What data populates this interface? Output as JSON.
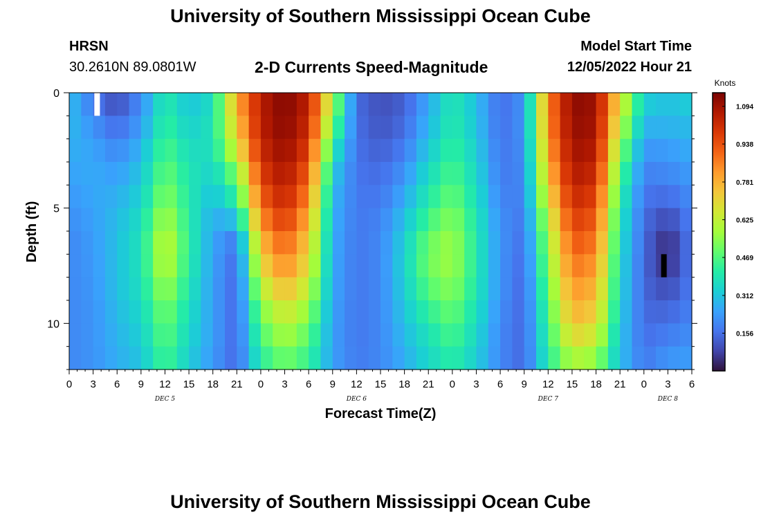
{
  "header": {
    "title": "University of Southern Mississippi Ocean Cube",
    "station": "HRSN",
    "coords": "30.2610N  89.0801W",
    "subtitle": "2-D Currents Speed-Magnitude",
    "model_label": "Model Start Time",
    "model_time": "12/05/2022 Hour 21"
  },
  "footer": {
    "title": "University of Southern Mississippi Ocean Cube"
  },
  "colors": {
    "scale": [
      "#30123b",
      "#4145ab",
      "#4675ed",
      "#39a2fc",
      "#1bcfd4",
      "#24eca6",
      "#61fc6c",
      "#a4fc3b",
      "#d1e834",
      "#f3c63a",
      "#fe9b2d",
      "#f36315",
      "#d93806",
      "#b11901",
      "#7a0403"
    ]
  },
  "chart_data": {
    "type": "heatmap",
    "title": "2-D Currents Speed-Magnitude",
    "xlabel": "Forecast Time(Z)",
    "ylabel": "Depth (ft)",
    "colorbar_label": "Knots",
    "colorbar_ticks": [
      "1.094",
      "0.938",
      "0.781",
      "0.625",
      "0.469",
      "0.312",
      "0.156"
    ],
    "colorbar_tick_values": [
      1.094,
      0.938,
      0.781,
      0.625,
      0.469,
      0.312,
      0.156
    ],
    "vmin": 0.0,
    "vmax": 1.15,
    "x_hours_range": [
      0,
      78
    ],
    "x_tick_labels": [
      "0",
      "3",
      "6",
      "9",
      "12",
      "15",
      "18",
      "21",
      "0",
      "3",
      "6",
      "9",
      "12",
      "15",
      "18",
      "21",
      "0",
      "3",
      "6",
      "9",
      "12",
      "15",
      "18",
      "21",
      "0",
      "3",
      "6"
    ],
    "day_labels": [
      {
        "label": "DEC 5",
        "hour": 12
      },
      {
        "label": "DEC 6",
        "hour": 36
      },
      {
        "label": "DEC 7",
        "hour": 60
      },
      {
        "label": "DEC 8",
        "hour": 75
      }
    ],
    "y_range": [
      0,
      12
    ],
    "y_tick_labels": [
      "0",
      "5",
      "10"
    ],
    "y_tick_values": [
      0,
      5,
      10
    ],
    "depth_levels_ft": [
      0,
      1,
      2,
      3,
      4,
      5,
      6,
      7,
      8,
      9,
      10,
      11,
      12
    ],
    "hours": [
      0,
      3,
      6,
      9,
      12,
      15,
      18,
      21,
      24,
      27,
      30,
      33,
      36,
      39,
      42,
      45,
      48,
      51,
      54,
      57,
      60,
      63,
      66,
      69,
      72,
      75,
      78
    ],
    "speed_knots": [
      [
        0.3,
        0.15,
        0.08,
        0.2,
        0.4,
        0.3,
        0.35,
        0.8,
        1.05,
        1.14,
        1.05,
        0.6,
        0.15,
        0.1,
        0.12,
        0.25,
        0.4,
        0.3,
        0.15,
        0.22,
        0.85,
        1.12,
        1.1,
        0.7,
        0.35,
        0.3,
        0.35
      ],
      [
        0.3,
        0.2,
        0.12,
        0.22,
        0.42,
        0.32,
        0.38,
        0.76,
        1.06,
        1.14,
        1.04,
        0.55,
        0.15,
        0.1,
        0.14,
        0.27,
        0.4,
        0.3,
        0.15,
        0.22,
        0.85,
        1.12,
        1.1,
        0.65,
        0.3,
        0.3,
        0.3
      ],
      [
        0.28,
        0.24,
        0.18,
        0.26,
        0.45,
        0.35,
        0.38,
        0.7,
        1.04,
        1.12,
        1.0,
        0.45,
        0.16,
        0.12,
        0.16,
        0.3,
        0.42,
        0.32,
        0.16,
        0.22,
        0.82,
        1.1,
        1.08,
        0.58,
        0.25,
        0.25,
        0.28
      ],
      [
        0.26,
        0.26,
        0.22,
        0.3,
        0.48,
        0.38,
        0.36,
        0.6,
        1.0,
        1.1,
        0.95,
        0.35,
        0.16,
        0.14,
        0.2,
        0.34,
        0.45,
        0.34,
        0.17,
        0.2,
        0.78,
        1.08,
        1.05,
        0.5,
        0.2,
        0.22,
        0.25
      ],
      [
        0.24,
        0.26,
        0.26,
        0.32,
        0.52,
        0.4,
        0.32,
        0.45,
        0.95,
        1.06,
        0.88,
        0.3,
        0.17,
        0.16,
        0.24,
        0.38,
        0.48,
        0.36,
        0.18,
        0.2,
        0.72,
        1.05,
        1.0,
        0.45,
        0.18,
        0.18,
        0.22
      ],
      [
        0.22,
        0.25,
        0.28,
        0.35,
        0.56,
        0.4,
        0.28,
        0.4,
        0.88,
        1.02,
        0.82,
        0.28,
        0.17,
        0.18,
        0.28,
        0.42,
        0.52,
        0.38,
        0.2,
        0.18,
        0.65,
        1.0,
        0.95,
        0.4,
        0.15,
        0.12,
        0.2
      ],
      [
        0.2,
        0.24,
        0.3,
        0.38,
        0.62,
        0.42,
        0.25,
        0.2,
        0.8,
        0.95,
        0.75,
        0.27,
        0.17,
        0.2,
        0.32,
        0.48,
        0.56,
        0.4,
        0.22,
        0.16,
        0.58,
        0.95,
        0.9,
        0.38,
        0.15,
        0.06,
        0.18
      ],
      [
        0.2,
        0.23,
        0.3,
        0.38,
        0.64,
        0.42,
        0.25,
        0.15,
        0.72,
        0.88,
        0.7,
        0.26,
        0.17,
        0.2,
        0.34,
        0.52,
        0.58,
        0.4,
        0.22,
        0.15,
        0.55,
        0.9,
        0.85,
        0.36,
        0.14,
        0.02,
        0.18
      ],
      [
        0.2,
        0.23,
        0.3,
        0.38,
        0.6,
        0.4,
        0.24,
        0.14,
        0.66,
        0.82,
        0.66,
        0.26,
        0.17,
        0.2,
        0.34,
        0.5,
        0.56,
        0.4,
        0.22,
        0.14,
        0.52,
        0.85,
        0.8,
        0.35,
        0.14,
        0.07,
        0.18
      ],
      [
        0.2,
        0.22,
        0.3,
        0.36,
        0.54,
        0.38,
        0.24,
        0.14,
        0.55,
        0.7,
        0.58,
        0.25,
        0.17,
        0.2,
        0.32,
        0.45,
        0.52,
        0.38,
        0.22,
        0.14,
        0.48,
        0.8,
        0.75,
        0.34,
        0.14,
        0.12,
        0.18
      ],
      [
        0.2,
        0.22,
        0.28,
        0.34,
        0.5,
        0.36,
        0.24,
        0.14,
        0.5,
        0.62,
        0.52,
        0.24,
        0.17,
        0.2,
        0.3,
        0.4,
        0.48,
        0.36,
        0.2,
        0.14,
        0.45,
        0.75,
        0.7,
        0.32,
        0.15,
        0.16,
        0.2
      ],
      [
        0.2,
        0.22,
        0.28,
        0.32,
        0.48,
        0.34,
        0.24,
        0.14,
        0.44,
        0.55,
        0.46,
        0.24,
        0.17,
        0.2,
        0.28,
        0.36,
        0.44,
        0.34,
        0.2,
        0.14,
        0.42,
        0.65,
        0.6,
        0.3,
        0.16,
        0.2,
        0.22
      ],
      [
        0.2,
        0.22,
        0.26,
        0.3,
        0.44,
        0.32,
        0.22,
        0.14,
        0.4,
        0.48,
        0.42,
        0.24,
        0.18,
        0.2,
        0.26,
        0.34,
        0.4,
        0.32,
        0.2,
        0.14,
        0.4,
        0.55,
        0.52,
        0.3,
        0.18,
        0.24,
        0.25
      ]
    ],
    "missing_cells": [
      {
        "hour": 3.5,
        "depth": 0
      },
      {
        "hour": 74.5,
        "depth": 7
      }
    ]
  }
}
